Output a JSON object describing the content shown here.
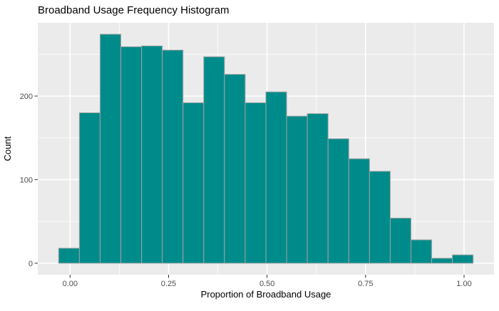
{
  "chart_data": {
    "type": "bar",
    "subtype": "histogram",
    "title": "Broadband Usage Frequency Histogram",
    "xlabel": "Proportion of Broadband Usage",
    "ylabel": "Count",
    "bin_start": -0.029,
    "binwidth": 0.0526,
    "counts": [
      18,
      180,
      274,
      259,
      260,
      255,
      192,
      247,
      226,
      192,
      205,
      176,
      179,
      149,
      125,
      110,
      54,
      28,
      6,
      10
    ],
    "x_ticks": [
      {
        "value": 0.0,
        "label": "0.00"
      },
      {
        "value": 0.25,
        "label": "0.25"
      },
      {
        "value": 0.5,
        "label": "0.50"
      },
      {
        "value": 0.75,
        "label": "0.75"
      },
      {
        "value": 1.0,
        "label": "1.00"
      }
    ],
    "x_minor": [
      0.125,
      0.375,
      0.625,
      0.875
    ],
    "y_ticks": [
      {
        "value": 0,
        "label": "0"
      },
      {
        "value": 100,
        "label": "100"
      },
      {
        "value": 200,
        "label": "200"
      }
    ],
    "y_minor": [
      50,
      150,
      250
    ],
    "xlim": [
      -0.082,
      1.076
    ],
    "ylim": [
      -13.7,
      287.7
    ],
    "grid": true,
    "legend": false,
    "colors": {
      "bar_fill": "#008B8B",
      "bar_stroke": "#A3A3A3",
      "panel_bg": "#EBEBEB",
      "grid": "#FFFFFF",
      "tick_mark": "#333333",
      "tick_label": "#4D4D4D",
      "axis_title": "#000000",
      "title": "#000000",
      "outer_bg": "#FFFFFF"
    }
  }
}
